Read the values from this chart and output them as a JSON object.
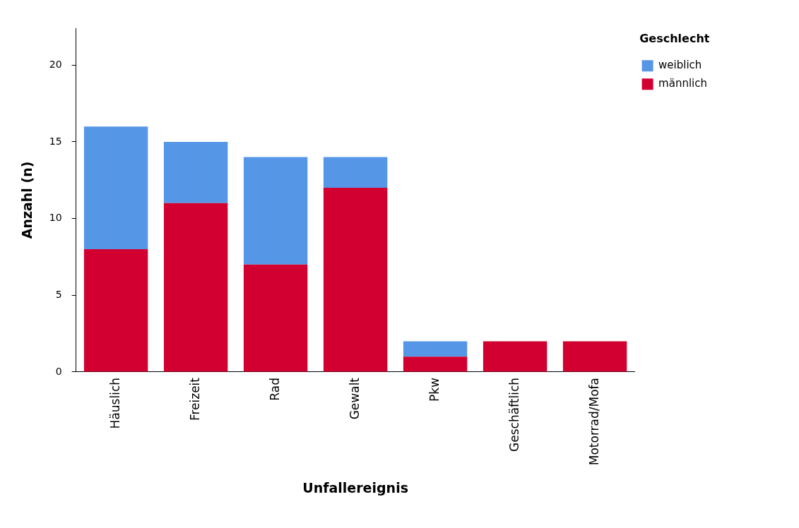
{
  "chart_data": {
    "type": "bar",
    "xlabel": "Unfallereignis",
    "ylabel": "Anzahl (n)",
    "legend_title": "Geschlecht",
    "categories": [
      "Häuslich",
      "Freizeit",
      "Rad",
      "Gewalt",
      "Pkw",
      "Geschäftlich",
      "Motorrad/Mofa"
    ],
    "series": [
      {
        "name": "männlich",
        "color": "#d10030",
        "values": [
          8,
          11,
          7,
          12,
          1,
          2,
          2
        ]
      },
      {
        "name": "weiblich",
        "color": "#5596e6",
        "values": [
          8,
          4,
          7,
          2,
          1,
          0,
          0
        ]
      }
    ],
    "stacked": true,
    "ylim": [
      0,
      22.4
    ],
    "yticks": [
      0,
      5,
      10,
      15,
      20
    ],
    "grid": false,
    "legend": "top right"
  }
}
